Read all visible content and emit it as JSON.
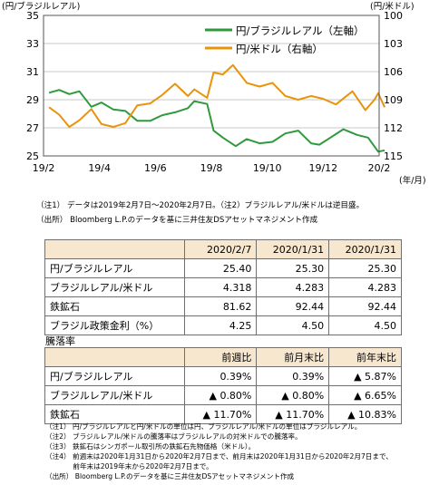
{
  "chart_data": {
    "type": "line",
    "y_left_unit": "(円/ブラジルレアル)",
    "y_right_unit": "(円/米ドル)",
    "x_unit": "(年/月)",
    "x_ticks": [
      "19/2",
      "19/4",
      "19/6",
      "19/8",
      "19/10",
      "19/12",
      "20/2"
    ],
    "y_left_ticks": [
      "25",
      "27",
      "29",
      "31",
      "33",
      "35"
    ],
    "y_right_ticks": [
      "100",
      "103",
      "106",
      "109",
      "112",
      "115"
    ],
    "y_left_range": [
      25,
      35
    ],
    "y_right_range": [
      100,
      115
    ],
    "right_axis_inverted": true,
    "legend_position": "top-right",
    "series": [
      {
        "name": "円/ブラジルレアル（左軸）",
        "axis": "left",
        "color": "#2f9a3c",
        "points": [
          [
            "2019-02-07",
            29.5
          ],
          [
            "2019-02-18",
            29.7
          ],
          [
            "2019-03-01",
            29.4
          ],
          [
            "2019-03-12",
            29.6
          ],
          [
            "2019-03-25",
            28.5
          ],
          [
            "2019-04-05",
            28.8
          ],
          [
            "2019-04-18",
            28.3
          ],
          [
            "2019-05-01",
            28.2
          ],
          [
            "2019-05-14",
            27.5
          ],
          [
            "2019-05-28",
            27.5
          ],
          [
            "2019-06-10",
            27.9
          ],
          [
            "2019-06-24",
            28.1
          ],
          [
            "2019-07-08",
            28.4
          ],
          [
            "2019-07-15",
            28.9
          ],
          [
            "2019-07-29",
            28.7
          ],
          [
            "2019-08-05",
            26.8
          ],
          [
            "2019-08-15",
            26.3
          ],
          [
            "2019-08-29",
            25.7
          ],
          [
            "2019-09-10",
            26.2
          ],
          [
            "2019-09-24",
            25.9
          ],
          [
            "2019-10-08",
            26.0
          ],
          [
            "2019-10-22",
            26.6
          ],
          [
            "2019-11-05",
            26.8
          ],
          [
            "2019-11-19",
            25.9
          ],
          [
            "2019-11-28",
            25.8
          ],
          [
            "2019-12-10",
            26.3
          ],
          [
            "2019-12-24",
            26.9
          ],
          [
            "2020-01-08",
            26.5
          ],
          [
            "2020-01-20",
            26.3
          ],
          [
            "2020-01-31",
            25.3
          ],
          [
            "2020-02-07",
            25.4
          ]
        ]
      },
      {
        "name": "円/米ドル（右軸）",
        "axis": "right",
        "color": "#e8930c",
        "points": [
          [
            "2019-02-07",
            109.8
          ],
          [
            "2019-02-18",
            110.6
          ],
          [
            "2019-03-01",
            111.9
          ],
          [
            "2019-03-12",
            111.2
          ],
          [
            "2019-03-25",
            110.0
          ],
          [
            "2019-04-05",
            111.6
          ],
          [
            "2019-04-18",
            111.9
          ],
          [
            "2019-05-01",
            111.5
          ],
          [
            "2019-05-14",
            109.6
          ],
          [
            "2019-05-28",
            109.4
          ],
          [
            "2019-06-10",
            108.5
          ],
          [
            "2019-06-24",
            107.3
          ],
          [
            "2019-07-08",
            108.6
          ],
          [
            "2019-07-15",
            107.9
          ],
          [
            "2019-07-29",
            108.8
          ],
          [
            "2019-08-05",
            106.1
          ],
          [
            "2019-08-15",
            106.3
          ],
          [
            "2019-08-26",
            105.3
          ],
          [
            "2019-09-10",
            107.2
          ],
          [
            "2019-09-24",
            107.6
          ],
          [
            "2019-10-08",
            107.2
          ],
          [
            "2019-10-22",
            108.6
          ],
          [
            "2019-11-05",
            109.0
          ],
          [
            "2019-11-19",
            108.6
          ],
          [
            "2019-12-02",
            108.9
          ],
          [
            "2019-12-16",
            109.5
          ],
          [
            "2020-01-03",
            108.1
          ],
          [
            "2020-01-17",
            110.1
          ],
          [
            "2020-01-27",
            109.0
          ],
          [
            "2020-01-31",
            108.3
          ],
          [
            "2020-02-07",
            109.8
          ]
        ]
      }
    ]
  },
  "chart_notes": [
    "（注1） データは2019年2月7日～2020年2月7日。（注2）ブラジルレアル/米ドルは逆目盛。",
    "（出所） Bloomberg L.P.のデータを基に三井住友DSアセットマネジメント作成"
  ],
  "levels_table": {
    "headers": [
      "",
      "2020/2/7",
      "2020/1/31",
      "2020/1/31"
    ],
    "rows": [
      [
        "円/ブラジルレアル",
        "25.40",
        "25.30",
        "25.30"
      ],
      [
        "ブラジルレアル/米ドル",
        "4.318",
        "4.283",
        "4.283"
      ],
      [
        "鉄鉱石",
        "81.62",
        "92.44",
        "92.44"
      ],
      [
        "ブラジル政策金利（%）",
        "4.25",
        "4.50",
        "4.50"
      ]
    ]
  },
  "change_title": "騰落率",
  "change_table": {
    "headers": [
      "",
      "前週比",
      "前月末比",
      "前年末比"
    ],
    "rows": [
      [
        "円/ブラジルレアル",
        "0.39%",
        "0.39%",
        "▲ 5.87%"
      ],
      [
        "ブラジルレアル/米ドル",
        "▲ 0.80%",
        "▲ 0.80%",
        "▲ 6.65%"
      ],
      [
        "鉄鉱石",
        "▲ 11.70%",
        "▲ 11.70%",
        "▲ 10.83%"
      ]
    ]
  },
  "footnotes": [
    "（注1） 円/ブラジルレアルと円/米ドルの単位は円、ブラジルレアル/米ドルの単位はブラジルレアル。",
    "（注2） ブラジルレアル/米ドルの騰落率はブラジルレアルの対米ドルでの騰落率。",
    "（注3） 鉄鉱石はシンガポール取引所の鉄鉱石先物価格（米ドル）。",
    "（注4） 前週末は2020年1月31日から2020年2月7日まで、前月末は2020年1月31日から2020年2月7日まで、",
    "　　　　前年末は2019年末から2020年2月7日まで。",
    "（出所） Bloomberg L.P.のデータを基に三井住友DSアセットマネジメント作成"
  ]
}
